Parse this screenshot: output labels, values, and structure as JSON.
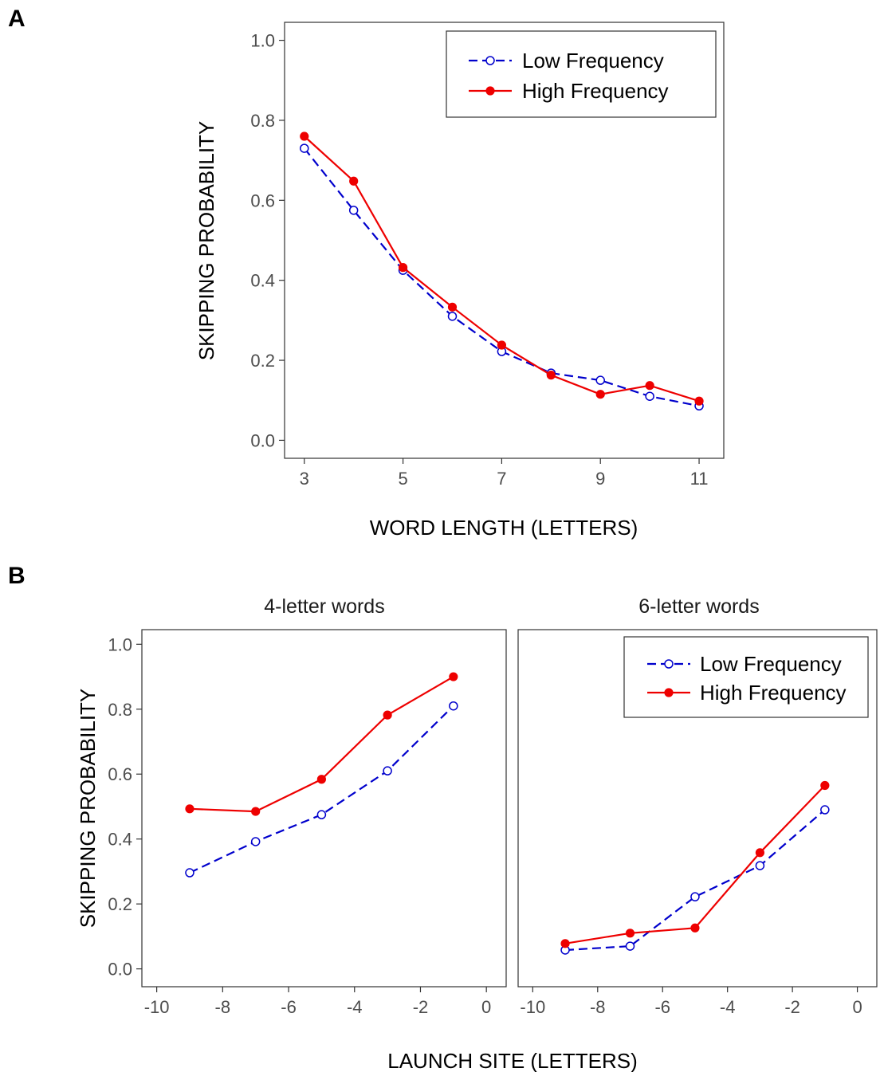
{
  "panel_labels": {
    "a": "A",
    "b": "B"
  },
  "colors": {
    "low": "#0000cc",
    "high": "#ee0000"
  },
  "legend": {
    "low": "Low Frequency",
    "high": "High Frequency"
  },
  "chart_data": [
    {
      "type": "line",
      "panel": "A",
      "xlabel": "WORD LENGTH (LETTERS)",
      "ylabel": "SKIPPING PROBABILITY",
      "xlim": [
        2.6,
        11.5
      ],
      "ylim": [
        -0.045,
        1.045
      ],
      "xticks": [
        3,
        5,
        7,
        9,
        11
      ],
      "xtick_labels": [
        "3",
        "5",
        "7",
        "9",
        "11"
      ],
      "yticks": [
        0,
        0.2,
        0.4,
        0.6,
        0.8,
        1
      ],
      "ytick_labels": [
        "0.0",
        "0.2",
        "0.4",
        "0.6",
        "0.8",
        "1.0"
      ],
      "legend_position": "top-right",
      "grid": false,
      "x": [
        3,
        4,
        5,
        6,
        7,
        8,
        9,
        10,
        11
      ],
      "series": [
        {
          "name": "Low Frequency",
          "values": [
            0.73,
            0.575,
            0.425,
            0.31,
            0.222,
            0.168,
            0.15,
            0.11,
            0.086
          ]
        },
        {
          "name": "High Frequency",
          "values": [
            0.76,
            0.648,
            0.432,
            0.333,
            0.238,
            0.163,
            0.115,
            0.137,
            0.098
          ]
        }
      ]
    },
    {
      "type": "line",
      "panel": "B",
      "facet_title": "4-letter words",
      "xlabel": "LAUNCH SITE (LETTERS)",
      "ylabel": "SKIPPING PROBABILITY",
      "xlim": [
        -10.45,
        0.6
      ],
      "ylim": [
        -0.055,
        1.045
      ],
      "xticks": [
        -10,
        -8,
        -6,
        -4,
        -2,
        0
      ],
      "xtick_labels": [
        "-10",
        "-8",
        "-6",
        "-4",
        "-2",
        "0"
      ],
      "yticks": [
        0,
        0.2,
        0.4,
        0.6,
        0.8,
        1
      ],
      "ytick_labels": [
        "0.0",
        "0.2",
        "0.4",
        "0.6",
        "0.8",
        "1.0"
      ],
      "grid": false,
      "x": [
        -9,
        -7,
        -5,
        -3,
        -1
      ],
      "series": [
        {
          "name": "Low Frequency",
          "values": [
            0.296,
            0.392,
            0.475,
            0.61,
            0.81
          ]
        },
        {
          "name": "High Frequency",
          "values": [
            0.493,
            0.485,
            0.584,
            0.782,
            0.9
          ]
        }
      ]
    },
    {
      "type": "line",
      "panel": "B",
      "facet_title": "6-letter words",
      "xlabel": "LAUNCH SITE (LETTERS)",
      "ylabel": "",
      "xlim": [
        -10.45,
        0.6
      ],
      "ylim": [
        -0.055,
        1.045
      ],
      "xticks": [
        -10,
        -8,
        -6,
        -4,
        -2,
        0
      ],
      "xtick_labels": [
        "-10",
        "-8",
        "-6",
        "-4",
        "-2",
        "0"
      ],
      "grid": false,
      "legend_position": "top-right",
      "x": [
        -9,
        -7,
        -5,
        -3,
        -1
      ],
      "series": [
        {
          "name": "Low Frequency",
          "values": [
            0.058,
            0.07,
            0.222,
            0.318,
            0.49
          ]
        },
        {
          "name": "High Frequency",
          "values": [
            0.078,
            0.11,
            0.126,
            0.358,
            0.565
          ]
        }
      ]
    }
  ]
}
